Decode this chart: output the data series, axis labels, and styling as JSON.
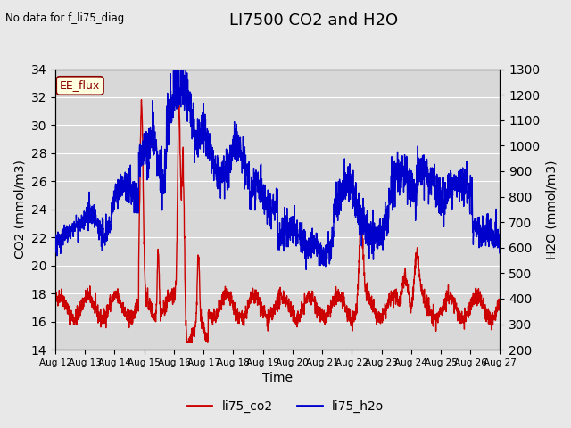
{
  "title": "LI7500 CO2 and H2O",
  "top_left_text": "No data for f_li75_diag",
  "legend_box_text": "EE_flux",
  "xlabel": "Time",
  "ylabel_left": "CO2 (mmol/m3)",
  "ylabel_right": "H2O (mmol/m3)",
  "ylim_left": [
    14,
    34
  ],
  "ylim_right": [
    200,
    1300
  ],
  "yticks_left": [
    14,
    16,
    18,
    20,
    22,
    24,
    26,
    28,
    30,
    32,
    34
  ],
  "yticks_right": [
    200,
    300,
    400,
    500,
    600,
    700,
    800,
    900,
    1000,
    1100,
    1200,
    1300
  ],
  "xtick_labels": [
    "Aug 12",
    "Aug 13",
    "Aug 14",
    "Aug 15",
    "Aug 16",
    "Aug 17",
    "Aug 18",
    "Aug 19",
    "Aug 20",
    "Aug 21",
    "Aug 22",
    "Aug 23",
    "Aug 24",
    "Aug 25",
    "Aug 26",
    "Aug 27"
  ],
  "co2_color": "#CC0000",
  "h2o_color": "#0000CC",
  "background_color": "#E8E8E8",
  "plot_bg_color": "#D8D8D8",
  "legend_label_co2": "li75_co2",
  "legend_label_h2o": "li75_h2o",
  "line_width": 1.0,
  "n_days": 16,
  "seed": 42
}
